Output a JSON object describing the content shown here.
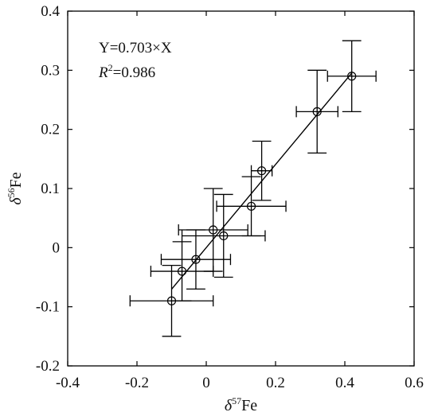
{
  "chart_data": {
    "type": "scatter",
    "xlabel": {
      "symbol": "δ",
      "sup": "57",
      "text": "Fe"
    },
    "ylabel": {
      "symbol": "δ",
      "sup": "56",
      "text": "Fe"
    },
    "xlim": [
      -0.4,
      0.6
    ],
    "ylim": [
      -0.2,
      0.4
    ],
    "xticks": [
      -0.4,
      -0.2,
      0,
      0.2,
      0.4,
      0.6
    ],
    "xtick_labels": [
      "-0.4",
      "-0.2",
      "0",
      "0.2",
      "0.4",
      "0.6"
    ],
    "yticks": [
      -0.2,
      -0.1,
      0,
      0.1,
      0.2,
      0.3,
      0.4
    ],
    "ytick_labels": [
      "-0.2",
      "-0.1",
      "0",
      "0.1",
      "0.2",
      "0.3",
      "0.4"
    ],
    "grid": false,
    "points": [
      {
        "x": -0.1,
        "y": -0.09,
        "xerr": 0.12,
        "yerr": 0.06
      },
      {
        "x": -0.07,
        "y": -0.04,
        "xerr": 0.09,
        "yerr": 0.05
      },
      {
        "x": -0.03,
        "y": -0.02,
        "xerr": 0.1,
        "yerr": 0.05
      },
      {
        "x": 0.02,
        "y": 0.03,
        "xerr": 0.1,
        "yerr": 0.07
      },
      {
        "x": 0.05,
        "y": 0.02,
        "xerr": 0.12,
        "yerr": 0.07
      },
      {
        "x": 0.13,
        "y": 0.07,
        "xerr": 0.1,
        "yerr": 0.05
      },
      {
        "x": 0.16,
        "y": 0.13,
        "xerr": 0.03,
        "yerr": 0.05
      },
      {
        "x": 0.32,
        "y": 0.23,
        "xerr": 0.06,
        "yerr": 0.07
      },
      {
        "x": 0.42,
        "y": 0.29,
        "xerr": 0.07,
        "yerr": 0.06
      }
    ],
    "fit": {
      "slope": 0.703,
      "x_range": [
        -0.1,
        0.42
      ]
    },
    "annotation": {
      "equation": "Y=0.703×X",
      "r2_symbol": "R",
      "r2_sup": "2",
      "r2_value": "=0.986"
    }
  }
}
